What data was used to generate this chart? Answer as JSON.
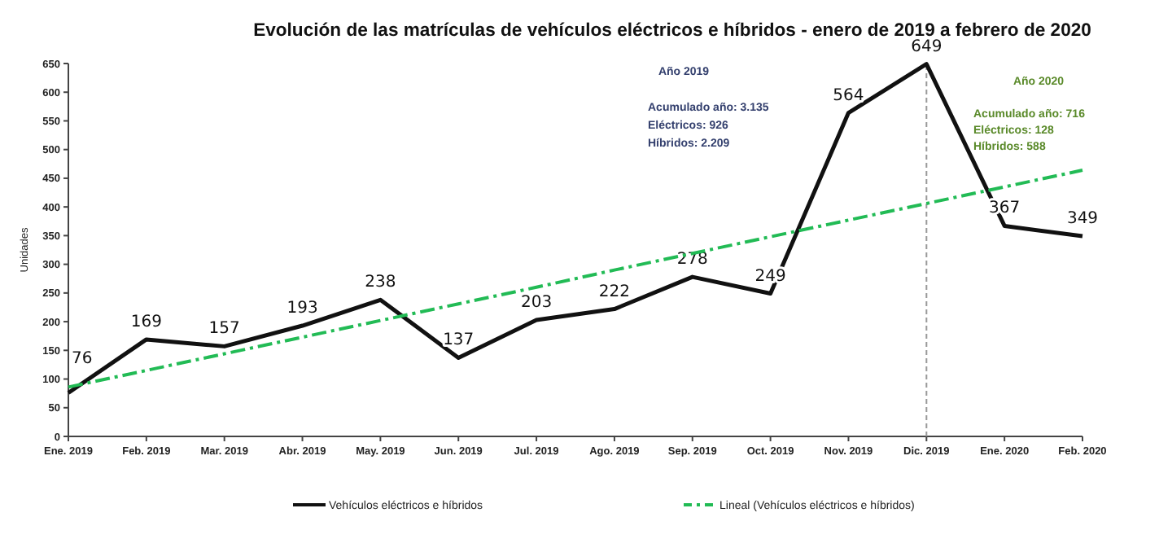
{
  "chart_data": {
    "type": "line",
    "title": "Evolución de las matrículas de vehículos eléctricos e híbridos - enero de 2019 a febrero de 2020",
    "ylabel": "Unidades",
    "categories": [
      "Ene. 2019",
      "Feb. 2019",
      "Mar. 2019",
      "Abr. 2019",
      "May. 2019",
      "Jun. 2019",
      "Jul.  2019",
      "Ago. 2019",
      "Sep. 2019",
      "Oct. 2019",
      "Nov. 2019",
      "Dic. 2019",
      "Ene. 2020",
      "Feb. 2020"
    ],
    "series": [
      {
        "name": "Vehículos eléctricos e híbridos",
        "color": "#111111",
        "values": [
          76,
          169,
          157,
          193,
          238,
          137,
          203,
          222,
          278,
          249,
          564,
          649,
          367,
          349
        ],
        "data_labels": true
      },
      {
        "name": "Lineal (Vehículos eléctricos e híbridos)",
        "color": "#22bb55",
        "line_style": "dashed",
        "values": [
          86,
          115,
          144,
          173,
          202,
          231,
          260,
          290,
          319,
          348,
          377,
          406,
          435,
          464
        ]
      }
    ],
    "ylim": [
      0,
      650
    ],
    "yticks": [
      0,
      50,
      100,
      150,
      200,
      250,
      300,
      350,
      400,
      450,
      500,
      550,
      600,
      650
    ],
    "ref_lines": [
      {
        "axis": "x",
        "value": "Dic. 2019",
        "color": "#999999",
        "line_style": "dashed"
      }
    ],
    "annotations": [
      "Año 2019",
      "Acumulado año:  3.135",
      "Eléctricos: 926",
      "Híbridos:  2.209",
      "Año 2020",
      "Acumulado año:  716",
      "Eléctricos:  128",
      "Híbridos:  588"
    ],
    "legend": "bottom",
    "grid": false
  }
}
